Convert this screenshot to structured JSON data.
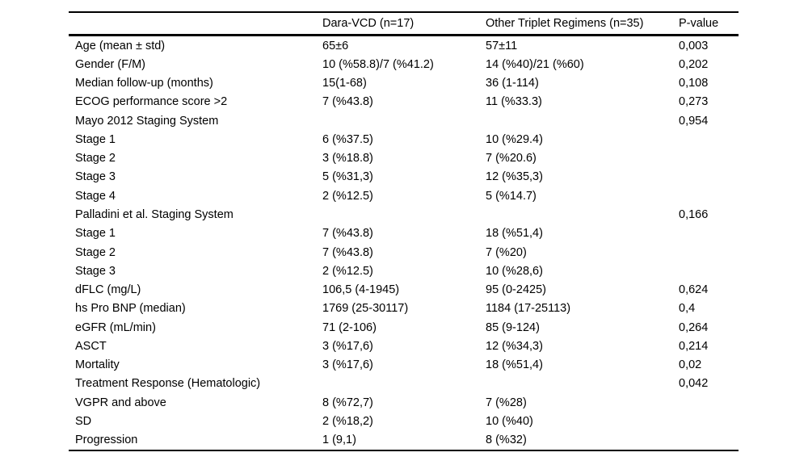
{
  "table": {
    "columns": [
      "",
      "Dara-VCD (n=17)",
      "Other Triplet Regimens (n=35)",
      "P-value"
    ],
    "rows": [
      {
        "label": "Age (mean ± std)",
        "label_bold": true,
        "dara": "65±6",
        "other": "57±11",
        "p": "0,003",
        "p_bold": true
      },
      {
        "label": "Gender (F/M)",
        "label_bold": true,
        "dara": "10 (%58.8)/7 (%41.2)",
        "other": "14 (%40)/21 (%60)",
        "p": "0,202",
        "p_bold": false
      },
      {
        "label": "Median follow-up (months)",
        "label_bold": true,
        "dara": "15(1-68)",
        "other": "36 (1-114)",
        "p": "0,108",
        "p_bold": false
      },
      {
        "label": "ECOG performance score >2",
        "label_bold": true,
        "dara": "7 (%43.8)",
        "other": "11 (%33.3)",
        "p": "0,273",
        "p_bold": false
      },
      {
        "label": "Mayo 2012 Staging System",
        "label_bold": true,
        "dara": "",
        "other": "",
        "p": "0,954",
        "p_bold": false
      },
      {
        "label": "Stage 1",
        "label_bold": false,
        "dara": "6 (%37.5)",
        "other": "10 (%29.4)",
        "p": "",
        "p_bold": false
      },
      {
        "label": "Stage 2",
        "label_bold": false,
        "dara": "3 (%18.8)",
        "other": "7 (%20.6)",
        "p": "",
        "p_bold": false
      },
      {
        "label": "Stage 3",
        "label_bold": false,
        "dara": "5 (%31,3)",
        "other": "12 (%35,3)",
        "p": "",
        "p_bold": false
      },
      {
        "label": "Stage 4",
        "label_bold": false,
        "dara": "2 (%12.5)",
        "other": "5 (%14.7)",
        "p": "",
        "p_bold": false
      },
      {
        "label": "Palladini et al. Staging System",
        "label_bold": true,
        "dara": "",
        "other": "",
        "p": "0,166",
        "p_bold": false
      },
      {
        "label": "Stage 1",
        "label_bold": false,
        "dara": "7 (%43.8)",
        "other": "18 (%51,4)",
        "p": "",
        "p_bold": false
      },
      {
        "label": "Stage 2",
        "label_bold": false,
        "dara": "7 (%43.8)",
        "other": "7 (%20)",
        "p": "",
        "p_bold": false
      },
      {
        "label": "Stage 3",
        "label_bold": false,
        "dara": "2 (%12.5)",
        "other": "10 (%28,6)",
        "p": "",
        "p_bold": false
      },
      {
        "label": "dFLC (mg/L)",
        "label_bold": true,
        "dara": "106,5 (4-1945)",
        "other": "95 (0-2425)",
        "p": "0,624",
        "p_bold": false
      },
      {
        "label": "hs Pro BNP (median)",
        "label_bold": true,
        "dara": "1769 (25-30117)",
        "other": "1184 (17-25113)",
        "p": "0,4",
        "p_bold": false
      },
      {
        "label": "eGFR (mL/min)",
        "label_bold": true,
        "dara": "71 (2-106)",
        "other": "85 (9-124)",
        "p": "0,264",
        "p_bold": false
      },
      {
        "label": "ASCT",
        "label_bold": true,
        "dara": "3 (%17,6)",
        "other": "12 (%34,3)",
        "p": "0,214",
        "p_bold": false
      },
      {
        "label": "Mortality",
        "label_bold": true,
        "dara": "3 (%17,6)",
        "other": "18 (%51,4)",
        "p": "0,02",
        "p_bold": true
      },
      {
        "label": "Treatment Response (Hematologic)",
        "label_bold": true,
        "dara": "",
        "other": "",
        "p": "0,042",
        "p_bold": true
      },
      {
        "label": "VGPR and above",
        "label_bold": false,
        "dara": "8 (%72,7)",
        "other": "7 (%28)",
        "p": "",
        "p_bold": false
      },
      {
        "label": "SD",
        "label_bold": false,
        "dara": "2 (%18,2)",
        "other": "10 (%40)",
        "p": "",
        "p_bold": false
      },
      {
        "label": "Progression",
        "label_bold": false,
        "dara": "1 (9,1)",
        "other": "8 (%32)",
        "p": "",
        "p_bold": false
      }
    ]
  }
}
